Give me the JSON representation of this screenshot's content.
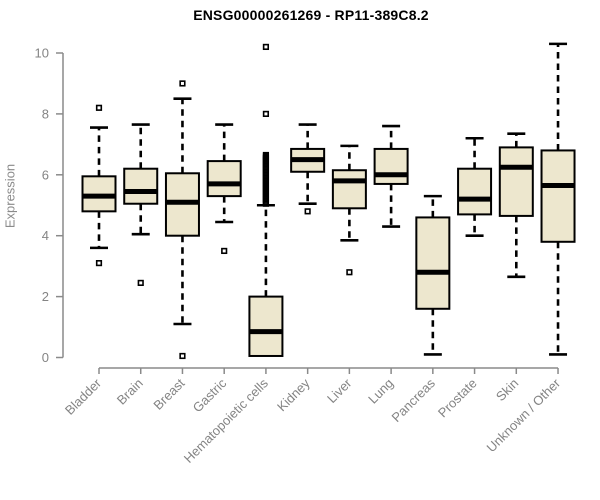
{
  "title": "ENSG00000261269 - RP11-389C8.2",
  "chart_data": {
    "type": "boxplot",
    "title": "ENSG00000261269 - RP11-389C8.2",
    "xlabel": "",
    "ylabel": "Expression",
    "ylim": [
      0,
      10
    ],
    "yticks": [
      0,
      2,
      4,
      6,
      8,
      10
    ],
    "grid": false,
    "legend": "none",
    "categories": [
      "Bladder",
      "Brain",
      "Breast",
      "Gastric",
      "Hematopoietic cells",
      "Kidney",
      "Liver",
      "Lung",
      "Pancreas",
      "Prostate",
      "Skin",
      "Unknown / Other"
    ],
    "series": [
      {
        "name": "Bladder",
        "whisker_low": 3.6,
        "q1": 4.8,
        "median": 5.3,
        "q3": 5.95,
        "whisker_high": 7.55,
        "outliers": [
          8.2,
          3.1
        ]
      },
      {
        "name": "Brain",
        "whisker_low": 4.05,
        "q1": 5.05,
        "median": 5.45,
        "q3": 6.2,
        "whisker_high": 7.65,
        "outliers": [
          2.45
        ]
      },
      {
        "name": "Breast",
        "whisker_low": 1.1,
        "q1": 4.0,
        "median": 5.1,
        "q3": 6.05,
        "whisker_high": 8.5,
        "outliers": [
          9.0,
          0.05
        ]
      },
      {
        "name": "Gastric",
        "whisker_low": 4.45,
        "q1": 5.3,
        "median": 5.7,
        "q3": 6.45,
        "whisker_high": 7.65,
        "outliers": [
          3.5
        ]
      },
      {
        "name": "Hematopoietic cells",
        "whisker_low": 0.05,
        "q1": 0.05,
        "median": 0.85,
        "q3": 2.0,
        "whisker_high": 5.0,
        "outliers": [
          5.05,
          5.1,
          5.15,
          5.2,
          5.25,
          5.3,
          5.35,
          5.4,
          5.45,
          5.5,
          5.55,
          5.6,
          5.65,
          5.7,
          5.75,
          5.8,
          5.85,
          5.9,
          5.95,
          6.0,
          6.05,
          6.1,
          6.15,
          6.2,
          6.25,
          6.3,
          6.35,
          6.4,
          6.45,
          6.5,
          6.55,
          6.6,
          6.65,
          8.0,
          10.2
        ]
      },
      {
        "name": "Kidney",
        "whisker_low": 5.05,
        "q1": 6.1,
        "median": 6.5,
        "q3": 6.85,
        "whisker_high": 7.65,
        "outliers": [
          4.8
        ]
      },
      {
        "name": "Liver",
        "whisker_low": 3.85,
        "q1": 4.9,
        "median": 5.8,
        "q3": 6.15,
        "whisker_high": 6.95,
        "outliers": [
          2.8
        ]
      },
      {
        "name": "Lung",
        "whisker_low": 4.3,
        "q1": 5.7,
        "median": 6.0,
        "q3": 6.85,
        "whisker_high": 7.6,
        "outliers": []
      },
      {
        "name": "Pancreas",
        "whisker_low": 0.1,
        "q1": 1.6,
        "median": 2.8,
        "q3": 4.6,
        "whisker_high": 5.3,
        "outliers": []
      },
      {
        "name": "Prostate",
        "whisker_low": 4.0,
        "q1": 4.7,
        "median": 5.2,
        "q3": 6.2,
        "whisker_high": 7.2,
        "outliers": []
      },
      {
        "name": "Skin",
        "whisker_low": 2.65,
        "q1": 4.65,
        "median": 6.25,
        "q3": 6.9,
        "whisker_high": 7.35,
        "outliers": []
      },
      {
        "name": "Unknown / Other",
        "whisker_low": 0.1,
        "q1": 3.8,
        "median": 5.65,
        "q3": 6.8,
        "whisker_high": 10.3,
        "outliers": []
      }
    ],
    "colors": {
      "box_fill": "#EDE7CE",
      "box_stroke": "#000000",
      "median": "#000000",
      "whisker": "#000000",
      "axis": "#8A8A8A",
      "tick_text": "#848484",
      "title_text": "#000000",
      "background": "#FFFFFF"
    }
  }
}
